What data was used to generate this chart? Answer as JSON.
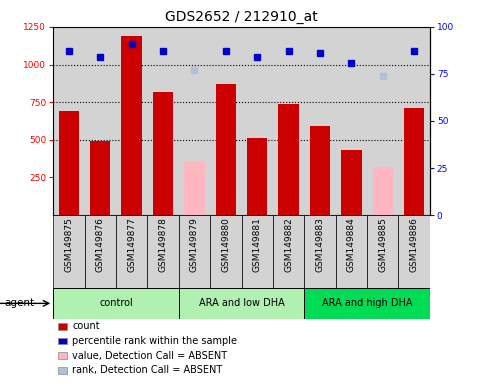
{
  "title": "GDS2652 / 212910_at",
  "samples": [
    "GSM149875",
    "GSM149876",
    "GSM149877",
    "GSM149878",
    "GSM149879",
    "GSM149880",
    "GSM149881",
    "GSM149882",
    "GSM149883",
    "GSM149884",
    "GSM149885",
    "GSM149886"
  ],
  "bar_values": [
    690,
    490,
    1190,
    820,
    null,
    870,
    510,
    740,
    590,
    430,
    null,
    710
  ],
  "bar_absent_values": [
    null,
    null,
    null,
    null,
    360,
    null,
    null,
    null,
    null,
    null,
    320,
    null
  ],
  "dot_values": [
    87,
    84,
    91,
    87,
    null,
    87,
    84,
    87,
    86,
    81,
    null,
    87
  ],
  "dot_absent_values": [
    null,
    null,
    null,
    null,
    77,
    null,
    null,
    null,
    null,
    null,
    74,
    null
  ],
  "bar_color": "#cc0000",
  "bar_absent_color": "#ffb6c1",
  "dot_color": "#0000cc",
  "dot_absent_color": "#b0c0d8",
  "ylim_left": [
    0,
    1250
  ],
  "ylim_right": [
    0,
    100
  ],
  "yticks_left": [
    250,
    500,
    750,
    1000,
    1250
  ],
  "yticks_right": [
    0,
    25,
    50,
    75,
    100
  ],
  "group_defs": [
    {
      "label": "control",
      "start": 0,
      "end": 3,
      "color": "#b0f0b0"
    },
    {
      "label": "ARA and low DHA",
      "start": 4,
      "end": 7,
      "color": "#b0f0b0"
    },
    {
      "label": "ARA and high DHA",
      "start": 8,
      "end": 11,
      "color": "#00dd55"
    }
  ],
  "legend_items": [
    {
      "color": "#cc0000",
      "label": "count"
    },
    {
      "color": "#0000cc",
      "label": "percentile rank within the sample"
    },
    {
      "color": "#ffb6c1",
      "label": "value, Detection Call = ABSENT"
    },
    {
      "color": "#b0c0d8",
      "label": "rank, Detection Call = ABSENT"
    }
  ],
  "plot_bg": "#d3d3d3",
  "fig_bg": "#ffffff",
  "title_fontsize": 10,
  "tick_fontsize": 6.5,
  "legend_fontsize": 7,
  "bar_width": 0.65,
  "gridline_values": [
    500,
    750,
    1000
  ],
  "agent_label": "agent"
}
